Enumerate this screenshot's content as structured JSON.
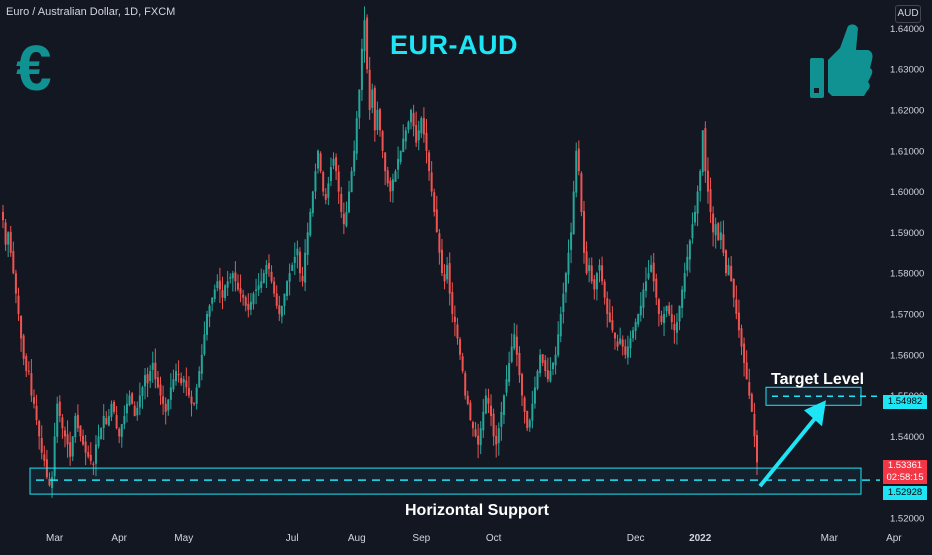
{
  "header": {
    "symbol_description": "Euro / Australian Dollar, 1D, FXCM",
    "currency_badge": "AUD"
  },
  "annotations": {
    "title": "EUR-AUD",
    "target_label": "Target Level",
    "support_label": "Horizontal Support",
    "euro_symbol": "€",
    "thumb_icon": "thumbs-up-icon"
  },
  "price_tags": {
    "target": "1.54982",
    "last": "1.53361",
    "countdown": "02:58:15",
    "support": "1.52928"
  },
  "colors": {
    "background": "#131722",
    "up_candle": "#26a69a",
    "down_candle": "#ef5350",
    "accent": "#1ee5f5",
    "icon": "#109292"
  },
  "chart_data": {
    "type": "candlestick",
    "title": "EUR-AUD",
    "xlabel": "",
    "ylabel": "",
    "ylim": [
      1.5195,
      1.6445
    ],
    "y_ticks": [
      "1.64000",
      "1.63000",
      "1.62000",
      "1.61000",
      "1.60000",
      "1.59000",
      "1.58000",
      "1.57000",
      "1.56000",
      "1.55000",
      "1.54000",
      "1.53000",
      "1.52000"
    ],
    "x_ticks": [
      "Mar",
      "Apr",
      "May",
      "Jul",
      "Aug",
      "Sep",
      "Oct",
      "Dec",
      "2022",
      "Mar",
      "Apr"
    ],
    "x_tick_index": [
      20,
      45,
      70,
      112,
      137,
      162,
      190,
      245,
      270,
      320,
      345
    ],
    "grid": false,
    "closes": [
      1.593,
      1.587,
      1.59,
      1.585,
      1.58,
      1.575,
      1.57,
      1.564,
      1.559,
      1.556,
      1.556,
      1.55,
      1.548,
      1.544,
      1.54,
      1.536,
      1.534,
      1.53,
      1.528,
      1.53,
      1.54,
      1.548,
      1.545,
      1.542,
      1.54,
      1.538,
      1.535,
      1.54,
      1.545,
      1.542,
      1.54,
      1.538,
      1.536,
      1.535,
      1.534,
      1.533,
      1.538,
      1.54,
      1.542,
      1.545,
      1.543,
      1.545,
      1.548,
      1.546,
      1.542,
      1.54,
      1.543,
      1.545,
      1.548,
      1.55,
      1.548,
      1.545,
      1.547,
      1.55,
      1.552,
      1.555,
      1.553,
      1.556,
      1.558,
      1.554,
      1.552,
      1.55,
      1.548,
      1.546,
      1.549,
      1.552,
      1.554,
      1.556,
      1.555,
      1.553,
      1.554,
      1.552,
      1.55,
      1.548,
      1.548,
      1.552,
      1.556,
      1.56,
      1.565,
      1.57,
      1.572,
      1.574,
      1.576,
      1.578,
      1.576,
      1.574,
      1.577,
      1.578,
      1.579,
      1.58,
      1.578,
      1.576,
      1.575,
      1.574,
      1.572,
      1.571,
      1.573,
      1.575,
      1.576,
      1.577,
      1.578,
      1.58,
      1.582,
      1.581,
      1.578,
      1.575,
      1.572,
      1.57,
      1.572,
      1.575,
      1.578,
      1.58,
      1.582,
      1.584,
      1.586,
      1.58,
      1.578,
      1.585,
      1.59,
      1.595,
      1.6,
      1.605,
      1.61,
      1.605,
      1.6,
      1.598,
      1.602,
      1.606,
      1.608,
      1.605,
      1.6,
      1.595,
      1.592,
      1.595,
      1.6,
      1.605,
      1.61,
      1.618,
      1.625,
      1.635,
      1.642,
      1.63,
      1.62,
      1.625,
      1.615,
      1.62,
      1.615,
      1.61,
      1.605,
      1.602,
      1.6,
      1.603,
      1.605,
      1.608,
      1.61,
      1.613,
      1.615,
      1.617,
      1.62,
      1.616,
      1.612,
      1.615,
      1.618,
      1.614,
      1.61,
      1.605,
      1.6,
      1.595,
      1.59,
      1.585,
      1.58,
      1.578,
      1.582,
      1.575,
      1.57,
      1.568,
      1.564,
      1.56,
      1.556,
      1.55,
      1.548,
      1.544,
      1.542,
      1.54,
      1.538,
      1.542,
      1.546,
      1.55,
      1.548,
      1.545,
      1.54,
      1.538,
      1.542,
      1.546,
      1.55,
      1.554,
      1.558,
      1.562,
      1.565,
      1.56,
      1.555,
      1.55,
      1.546,
      1.542,
      1.544,
      1.548,
      1.552,
      1.556,
      1.56,
      1.558,
      1.556,
      1.554,
      1.556,
      1.558,
      1.56,
      1.565,
      1.57,
      1.575,
      1.58,
      1.585,
      1.59,
      1.6,
      1.61,
      1.605,
      1.595,
      1.585,
      1.58,
      1.582,
      1.578,
      1.576,
      1.58,
      1.582,
      1.578,
      1.574,
      1.57,
      1.568,
      1.566,
      1.564,
      1.562,
      1.564,
      1.562,
      1.56,
      1.562,
      1.564,
      1.566,
      1.568,
      1.57,
      1.572,
      1.576,
      1.578,
      1.58,
      1.582,
      1.578,
      1.574,
      1.57,
      1.568,
      1.57,
      1.572,
      1.57,
      1.568,
      1.566,
      1.568,
      1.572,
      1.576,
      1.58,
      1.584,
      1.588,
      1.592,
      1.595,
      1.6,
      1.605,
      1.615,
      1.605,
      1.6,
      1.595,
      1.59,
      1.592,
      1.588,
      1.59,
      1.585,
      1.58,
      1.582,
      1.578,
      1.574,
      1.57,
      1.566,
      1.562,
      1.558,
      1.554,
      1.55,
      1.546,
      1.54,
      1.5336
    ],
    "price_levels": {
      "target": 1.54982,
      "last": 1.53361,
      "support": 1.52928
    }
  }
}
